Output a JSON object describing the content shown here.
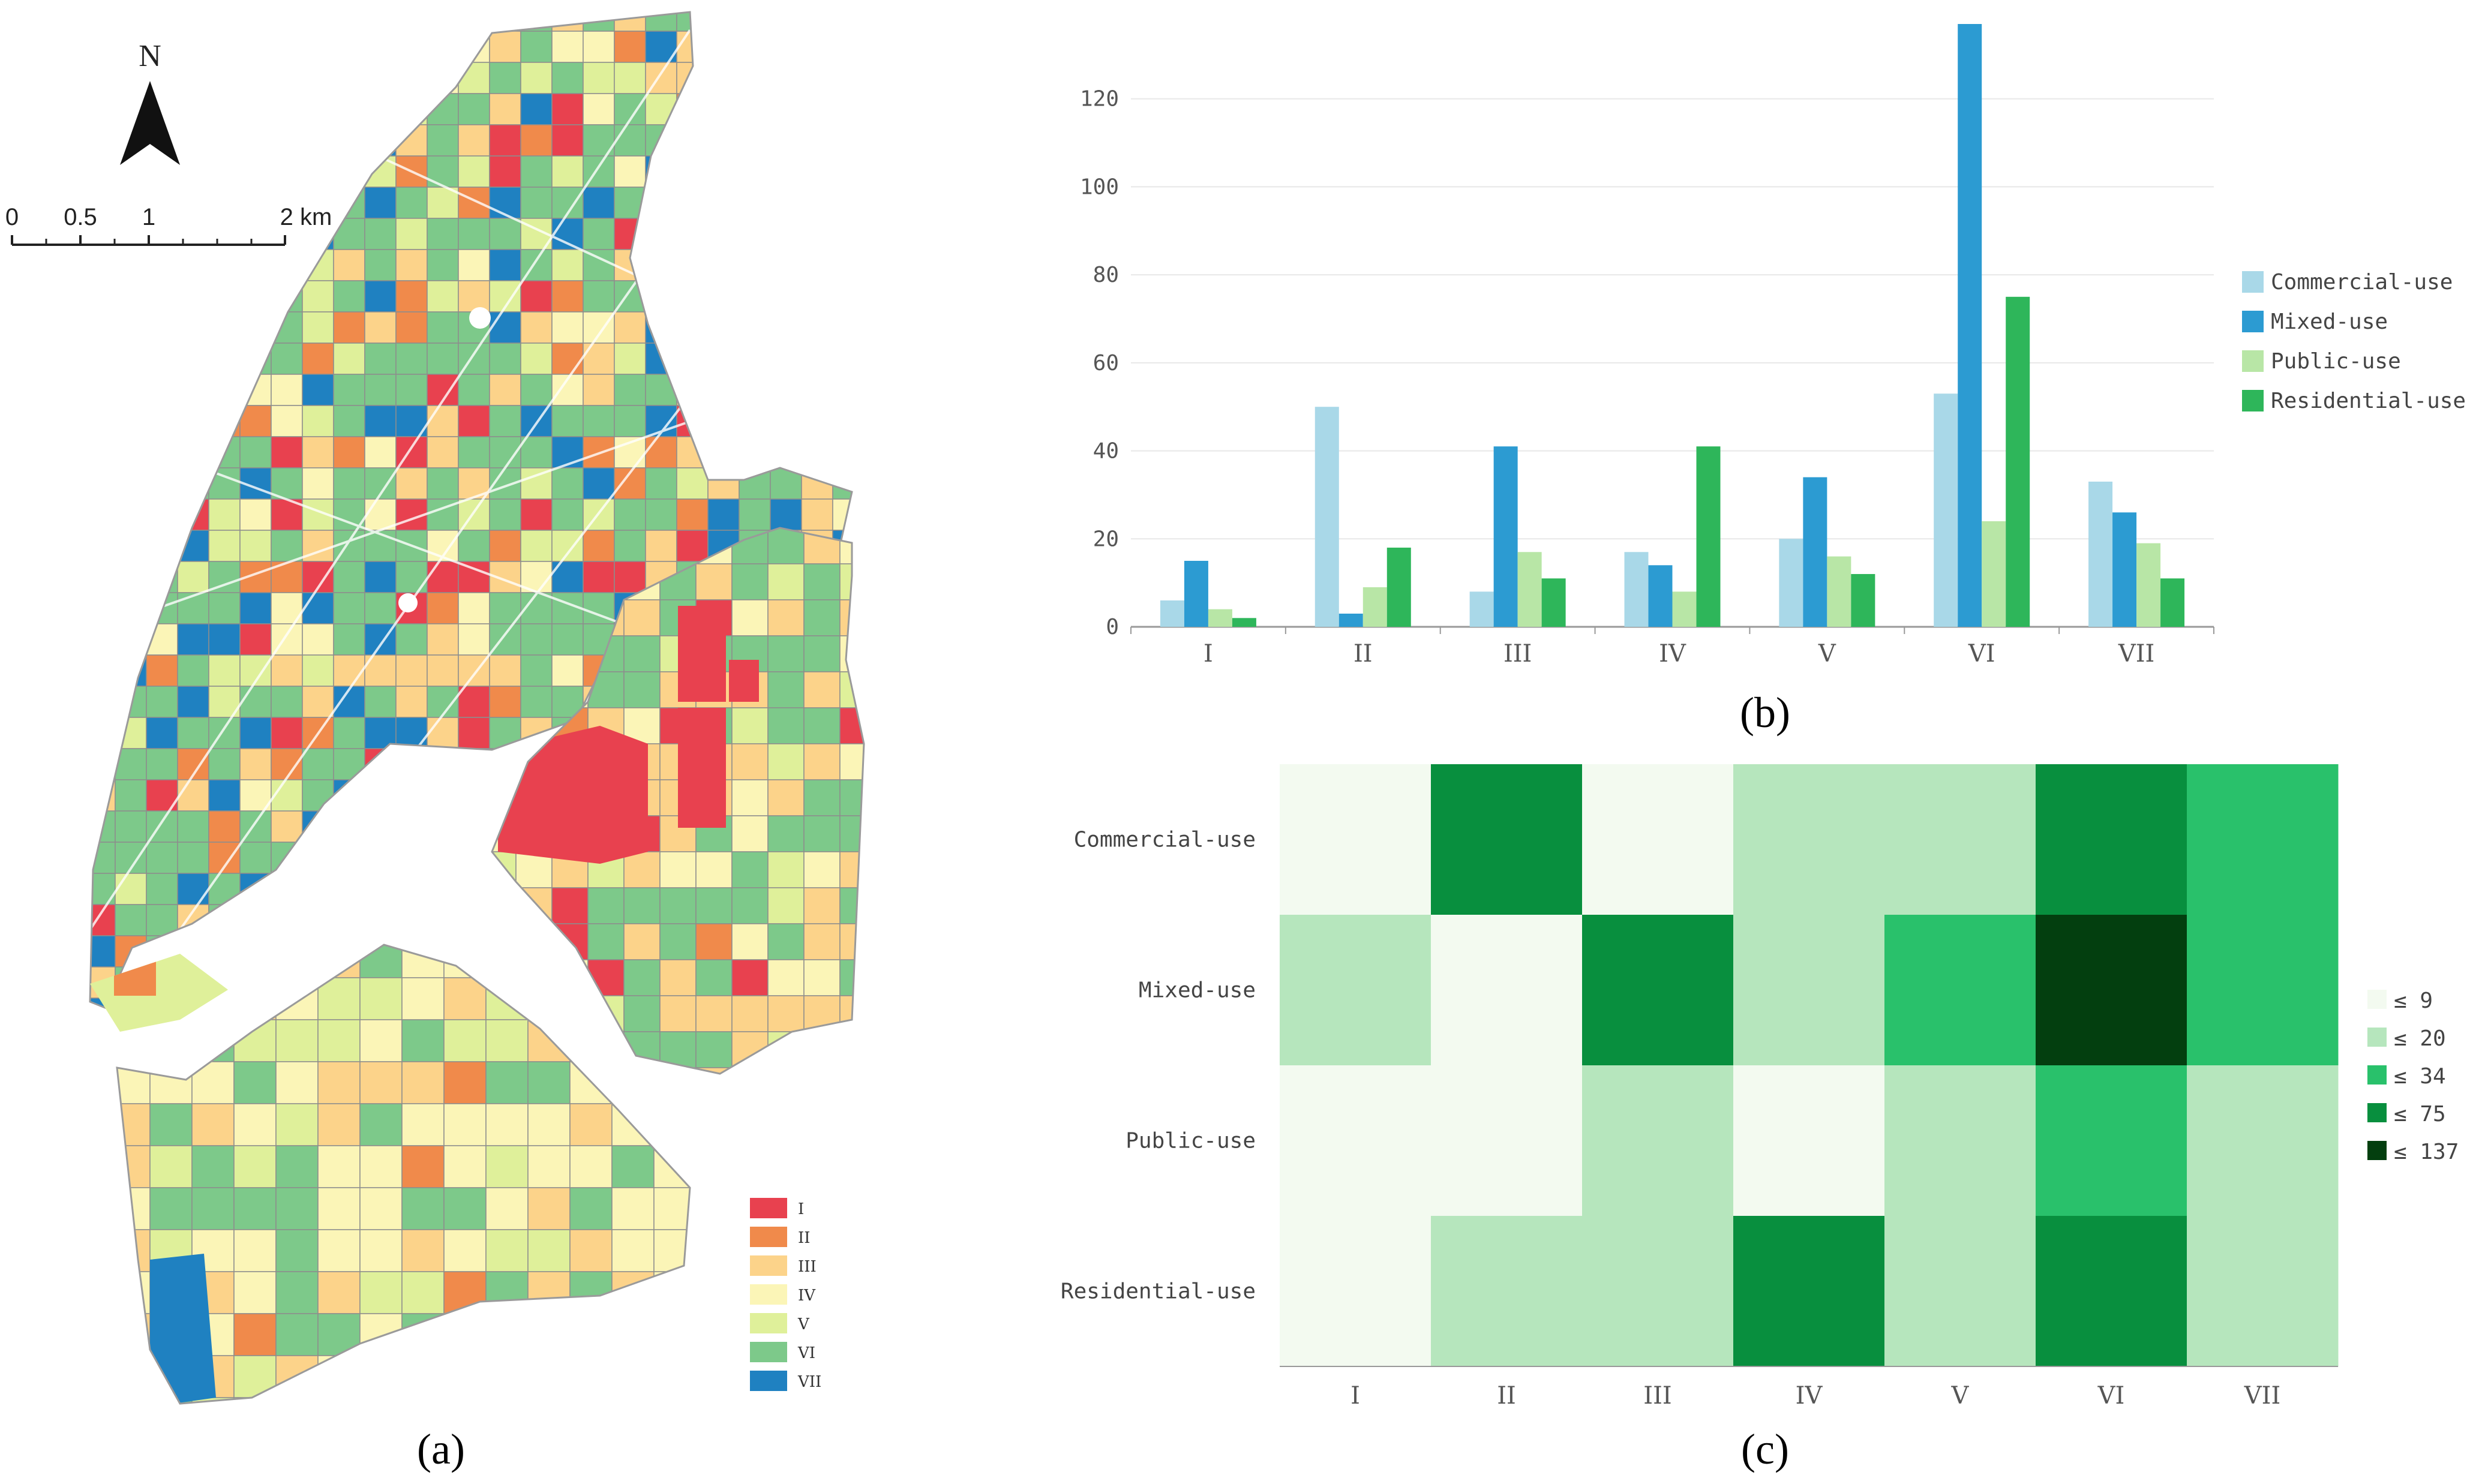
{
  "panels": {
    "a": "(a)",
    "b": "(b)",
    "c": "(c)"
  },
  "map": {
    "north_label": "N",
    "scale_ticks": [
      "0",
      "0.5",
      "1",
      "2 km"
    ],
    "legend": [
      {
        "label": "I",
        "color": "#e8414f"
      },
      {
        "label": "II",
        "color": "#f08a4b"
      },
      {
        "label": "III",
        "color": "#fcd38a"
      },
      {
        "label": "IV",
        "color": "#fbf5b7"
      },
      {
        "label": "V",
        "color": "#dff09a"
      },
      {
        "label": "VI",
        "color": "#7dc98a"
      },
      {
        "label": "VII",
        "color": "#1f81c1"
      }
    ]
  },
  "chart_data": [
    {
      "type": "bar",
      "panel": "b",
      "categories": [
        "I",
        "II",
        "III",
        "IV",
        "V",
        "VI",
        "VII"
      ],
      "series": [
        {
          "name": "Commercial-use",
          "color": "#a9d8e8",
          "values": [
            6,
            50,
            8,
            17,
            20,
            53,
            33
          ]
        },
        {
          "name": "Mixed-use",
          "color": "#2c9bd2",
          "values": [
            15,
            3,
            41,
            14,
            34,
            137,
            26
          ]
        },
        {
          "name": "Public-use",
          "color": "#b8e6a6",
          "values": [
            4,
            9,
            17,
            8,
            16,
            24,
            19
          ]
        },
        {
          "name": "Residential-use",
          "color": "#2eb65a",
          "values": [
            2,
            18,
            11,
            41,
            12,
            75,
            11
          ]
        }
      ],
      "yticks": [
        "0",
        "20",
        "40",
        "60",
        "80",
        "100",
        "120"
      ],
      "ylim": [
        0,
        137
      ],
      "legend": "right"
    },
    {
      "type": "heatmap",
      "panel": "c",
      "rows": [
        "Commercial-use",
        "Mixed-use",
        "Public-use",
        "Residential-use"
      ],
      "columns": [
        "I",
        "II",
        "III",
        "IV",
        "V",
        "VI",
        "VII"
      ],
      "values": [
        [
          6,
          50,
          8,
          17,
          20,
          53,
          33
        ],
        [
          15,
          3,
          41,
          14,
          34,
          137,
          26
        ],
        [
          4,
          9,
          17,
          8,
          16,
          24,
          19
        ],
        [
          2,
          18,
          11,
          41,
          12,
          75,
          11
        ]
      ],
      "legend": [
        {
          "label": "≤ 9",
          "max": 9,
          "color": "#f3faf0"
        },
        {
          "label": "≤ 20",
          "max": 20,
          "color": "#b6e6bd"
        },
        {
          "label": "≤ 34",
          "max": 34,
          "color": "#29c16b"
        },
        {
          "label": "≤ 75",
          "max": 75,
          "color": "#088f3e"
        },
        {
          "label": "≤ 137",
          "max": 137,
          "color": "#033f0f"
        }
      ]
    }
  ]
}
